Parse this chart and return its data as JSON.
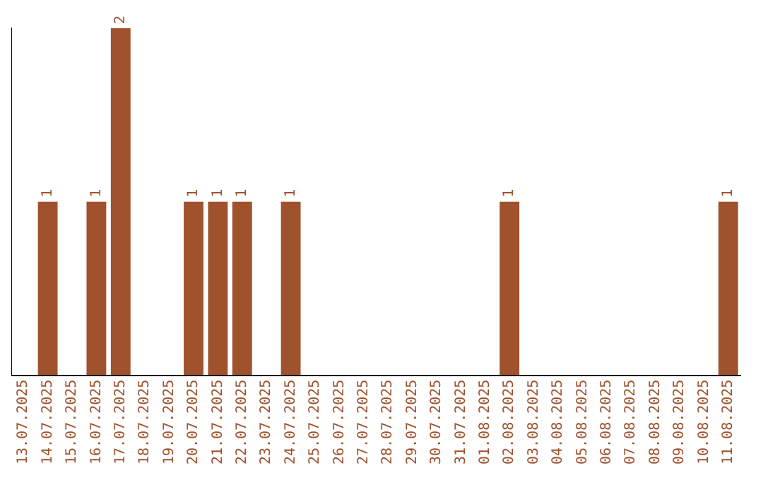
{
  "chart_data": {
    "type": "bar",
    "categories": [
      "13.07.2025",
      "14.07.2025",
      "15.07.2025",
      "16.07.2025",
      "17.07.2025",
      "18.07.2025",
      "19.07.2025",
      "20.07.2025",
      "21.07.2025",
      "22.07.2025",
      "23.07.2025",
      "24.07.2025",
      "25.07.2025",
      "26.07.2025",
      "27.07.2025",
      "28.07.2025",
      "29.07.2025",
      "30.07.2025",
      "31.07.2025",
      "01.08.2025",
      "02.08.2025",
      "03.08.2025",
      "04.08.2025",
      "05.08.2025",
      "06.08.2025",
      "07.08.2025",
      "08.08.2025",
      "09.08.2025",
      "10.08.2025",
      "11.08.2025"
    ],
    "values": [
      0,
      1,
      0,
      1,
      2,
      0,
      0,
      1,
      1,
      1,
      0,
      1,
      0,
      0,
      0,
      0,
      0,
      0,
      0,
      0,
      1,
      0,
      0,
      0,
      0,
      0,
      0,
      0,
      0,
      1
    ],
    "value_labels": [
      null,
      "1",
      null,
      "1",
      "2",
      null,
      null,
      "1",
      "1",
      "1",
      null,
      "1",
      null,
      null,
      null,
      null,
      null,
      null,
      null,
      null,
      "1",
      null,
      null,
      null,
      null,
      null,
      null,
      null,
      null,
      "1"
    ],
    "color": "#a0522d",
    "grid": false,
    "legend": false,
    "tick_labels": "x"
  }
}
